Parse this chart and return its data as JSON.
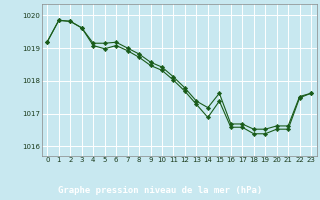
{
  "title": "Graphe pression niveau de la mer (hPa)",
  "bg_color": "#c8e8f0",
  "plot_bg_color": "#c8e8f0",
  "bar_bg_color": "#2d6e4e",
  "grid_color": "#ffffff",
  "line_color": "#1a5c1a",
  "marker_color": "#1a5c1a",
  "text_color": "#ffffff",
  "label_color": "#2d6e4e",
  "xlim": [
    -0.5,
    23.5
  ],
  "ylim": [
    1015.7,
    1020.35
  ],
  "yticks": [
    1016,
    1017,
    1018,
    1019,
    1020
  ],
  "xticks": [
    0,
    1,
    2,
    3,
    4,
    5,
    6,
    7,
    8,
    9,
    10,
    11,
    12,
    13,
    14,
    15,
    16,
    17,
    18,
    19,
    20,
    21,
    22,
    23
  ],
  "series1_x": [
    0,
    1,
    2,
    3,
    4,
    5,
    6,
    7,
    8,
    9,
    10,
    11,
    12,
    13,
    14,
    15,
    16,
    17,
    18,
    19,
    20,
    21,
    22,
    23
  ],
  "series1_y": [
    1019.2,
    1019.85,
    1019.82,
    1019.62,
    1019.15,
    1019.15,
    1019.18,
    1019.0,
    1018.82,
    1018.57,
    1018.42,
    1018.12,
    1017.78,
    1017.38,
    1017.18,
    1017.62,
    1016.68,
    1016.68,
    1016.52,
    1016.52,
    1016.62,
    1016.62,
    1017.52,
    1017.62
  ],
  "series2_x": [
    0,
    1,
    2,
    3,
    4,
    5,
    6,
    7,
    8,
    9,
    10,
    11,
    12,
    13,
    14,
    15,
    16,
    17,
    18,
    19,
    20,
    21,
    22,
    23
  ],
  "series2_y": [
    1019.2,
    1019.85,
    1019.82,
    1019.62,
    1019.08,
    1018.98,
    1019.08,
    1018.92,
    1018.72,
    1018.47,
    1018.32,
    1018.02,
    1017.68,
    1017.28,
    1016.88,
    1017.38,
    1016.58,
    1016.58,
    1016.38,
    1016.38,
    1016.52,
    1016.52,
    1017.48,
    1017.62
  ]
}
